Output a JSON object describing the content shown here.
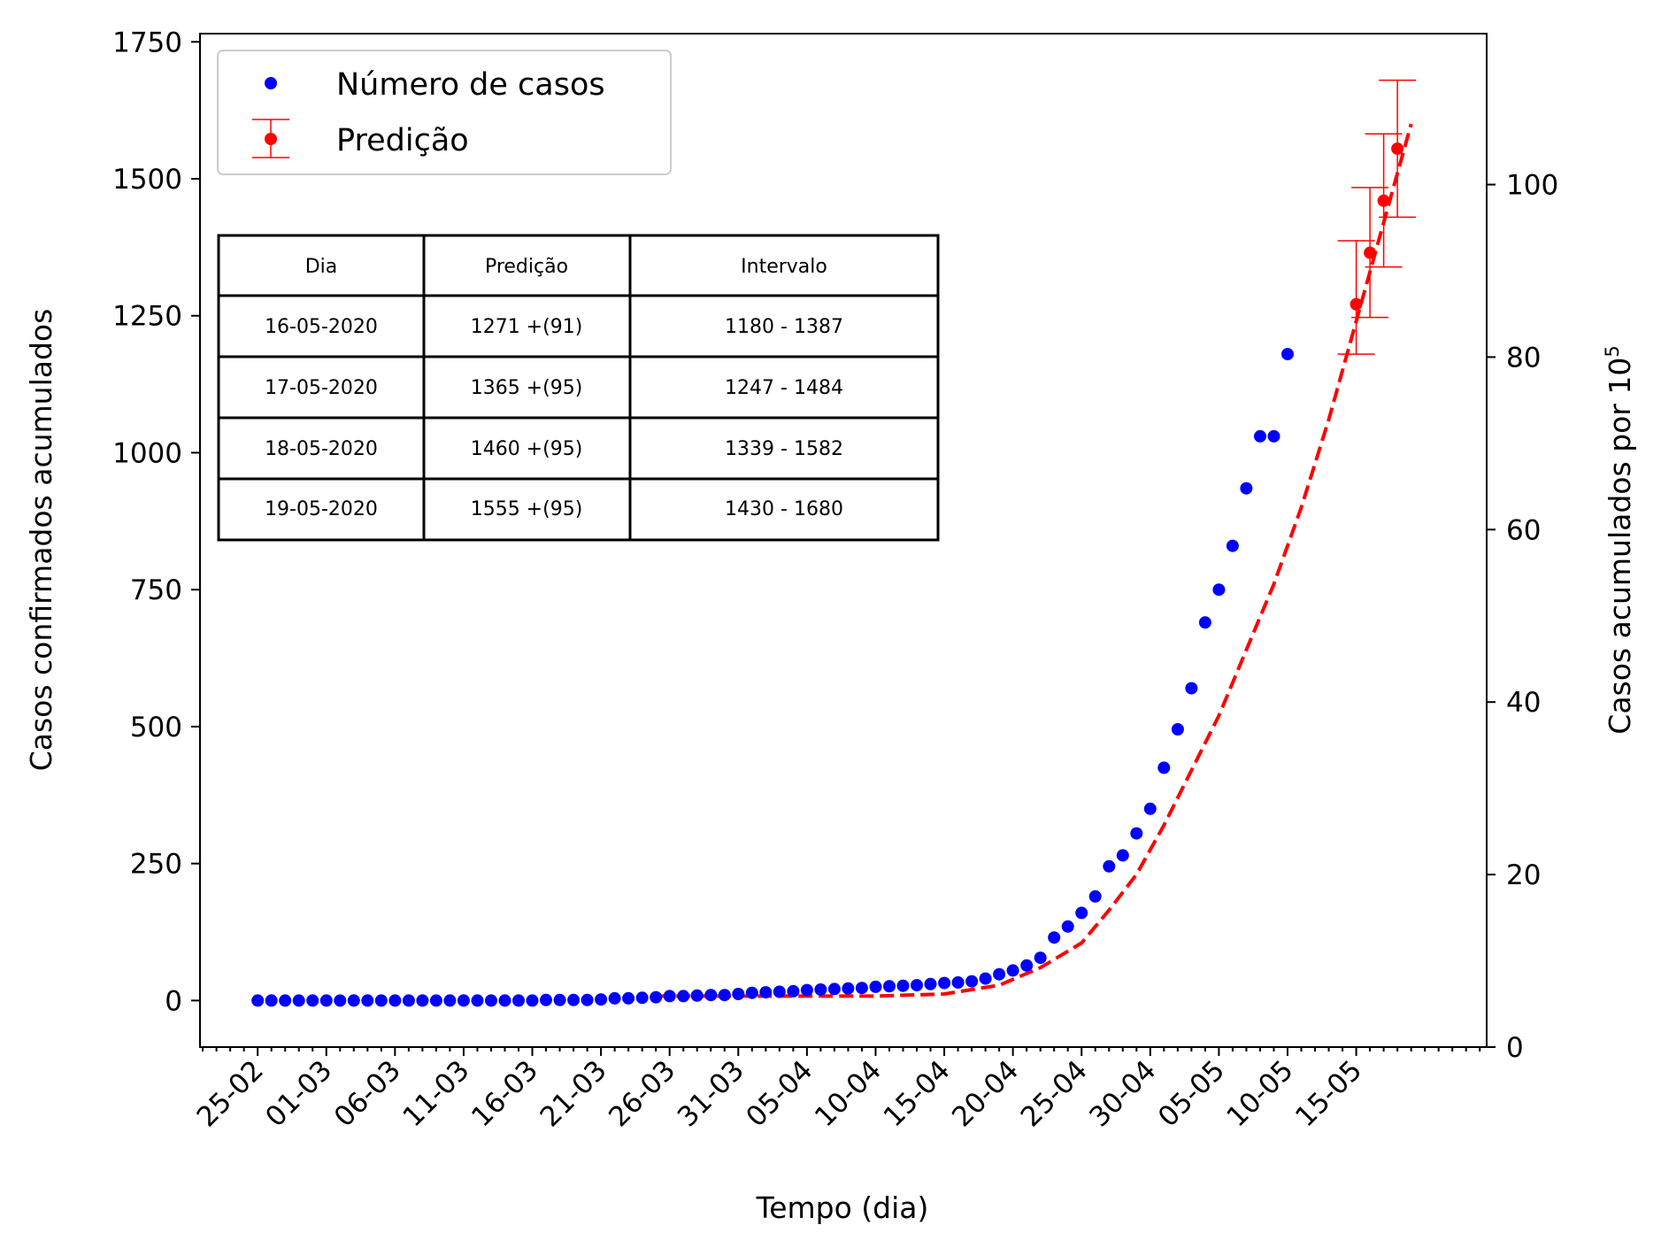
{
  "chart_data": {
    "type": "scatter",
    "xlabel": "Tempo (dia)",
    "ylabel_left": "Casos confirmados acumulados",
    "ylabel_right": "Casos acumulados por 10",
    "ylabel_right_exponent": "5",
    "ylim_left": [
      -85,
      1765
    ],
    "yticks_left": [
      0,
      250,
      500,
      750,
      1000,
      1250,
      1500,
      1750
    ],
    "ylim_right": [
      0,
      117.5
    ],
    "yticks_right": [
      0,
      20,
      40,
      60,
      80,
      100
    ],
    "x_start_date": "25-02",
    "x_tick_labels": [
      "25-02",
      "01-03",
      "06-03",
      "11-03",
      "16-03",
      "21-03",
      "26-03",
      "31-03",
      "05-04",
      "10-04",
      "15-04",
      "20-04",
      "25-04",
      "30-04",
      "05-05",
      "10-05",
      "15-05"
    ],
    "legend": {
      "position": "upper left",
      "entries": [
        "Número de casos",
        "Predição"
      ]
    },
    "colors": {
      "observed": "#0000ff",
      "prediction": "#ff0000",
      "fit_line": "#ff0000"
    },
    "series": [
      {
        "name": "Número de casos",
        "style": "points",
        "values": [
          0,
          0,
          0,
          0,
          0,
          0,
          0,
          0,
          0,
          0,
          0,
          0,
          0,
          0,
          0,
          0,
          0,
          0,
          0,
          0,
          0,
          1,
          1,
          1,
          1,
          2,
          4,
          4,
          5,
          6,
          8,
          8,
          9,
          10,
          10,
          12,
          14,
          15,
          16,
          17,
          19,
          20,
          21,
          22,
          23,
          25,
          26,
          27,
          28,
          30,
          32,
          33,
          35,
          40,
          48,
          55,
          64,
          78,
          115,
          135,
          160,
          190,
          245,
          265,
          305,
          350,
          425,
          495,
          570,
          690,
          750,
          830,
          935,
          1030,
          1030,
          1180
        ]
      },
      {
        "name": "Predição",
        "style": "points-with-errorbars",
        "dates": [
          "16-05-2020",
          "17-05-2020",
          "18-05-2020",
          "19-05-2020"
        ],
        "day_index": [
          80,
          81,
          82,
          83
        ],
        "values": [
          1271,
          1365,
          1460,
          1555
        ],
        "lower": [
          1180,
          1247,
          1339,
          1430
        ],
        "upper": [
          1387,
          1484,
          1582,
          1680
        ]
      },
      {
        "style": "dashed-fit",
        "x": [
          29,
          35,
          40,
          45,
          50,
          54,
          57,
          60,
          62,
          64,
          66,
          68,
          70,
          72,
          74,
          76,
          78,
          80,
          82,
          84
        ],
        "values": [
          8,
          8,
          8,
          8,
          12,
          28,
          60,
          105,
          165,
          230,
          320,
          420,
          520,
          640,
          760,
          900,
          1060,
          1240,
          1420,
          1600
        ]
      }
    ]
  },
  "table": {
    "headers": [
      "Dia",
      "Predição",
      "Intervalo"
    ],
    "rows": [
      [
        "16-05-2020",
        "1271 +(91)",
        "1180 - 1387"
      ],
      [
        "17-05-2020",
        "1365 +(95)",
        "1247 - 1484"
      ],
      [
        "18-05-2020",
        "1460 +(95)",
        "1339 - 1582"
      ],
      [
        "19-05-2020",
        "1555 +(95)",
        "1430 - 1680"
      ]
    ]
  }
}
